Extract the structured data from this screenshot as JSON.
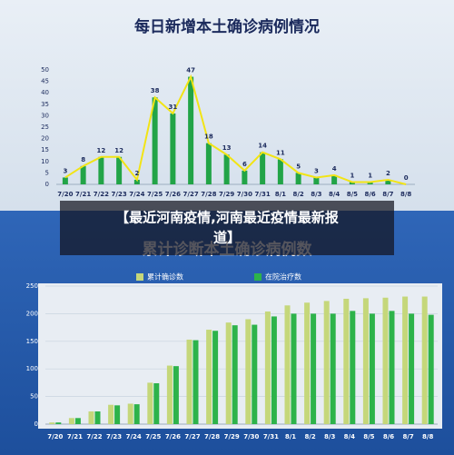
{
  "caption": "【最近河南疫情,河南最近疫情最新报道】",
  "chart_data": [
    {
      "type": "bar",
      "title": "每日新增本土确诊病例情况",
      "categories": [
        "7/20",
        "7/21",
        "7/22",
        "7/23",
        "7/24",
        "7/25",
        "7/26",
        "7/27",
        "7/28",
        "7/29",
        "7/30",
        "7/31",
        "8/1",
        "8/2",
        "8/3",
        "8/4",
        "8/5",
        "8/6",
        "8/7",
        "8/8"
      ],
      "values": [
        3,
        8,
        12,
        12,
        2,
        38,
        31,
        47,
        18,
        13,
        6,
        14,
        11,
        5,
        3,
        4,
        1,
        1,
        2,
        0
      ],
      "color": "#22a447",
      "overlay_line": true,
      "line_color": "#f2e415",
      "data_labels": true,
      "ylim": [
        0,
        50
      ],
      "yticks": [
        0,
        5,
        10,
        15,
        20,
        25,
        30,
        35,
        40,
        45,
        50
      ],
      "grid": false
    },
    {
      "type": "bar",
      "title": "累计诊断本土确诊病例数",
      "categories": [
        "7/20",
        "7/21",
        "7/22",
        "7/23",
        "7/24",
        "7/25",
        "7/26",
        "7/27",
        "7/28",
        "7/29",
        "7/30",
        "7/31",
        "8/1",
        "8/2",
        "8/3",
        "8/4",
        "8/5",
        "8/6",
        "8/7",
        "8/8"
      ],
      "series": [
        {
          "name": "累计确诊数",
          "color": "#c5d77a",
          "values": [
            3,
            11,
            23,
            35,
            37,
            75,
            106,
            153,
            171,
            184,
            190,
            204,
            215,
            220,
            223,
            227,
            228,
            229,
            231,
            231
          ]
        },
        {
          "name": "在院治疗数",
          "color": "#2db34a",
          "values": [
            3,
            11,
            23,
            34,
            36,
            74,
            105,
            152,
            169,
            179,
            180,
            195,
            200,
            200,
            200,
            205,
            200,
            205,
            200,
            198
          ]
        }
      ],
      "ylim": [
        0,
        250
      ],
      "yticks": [
        0,
        50,
        100,
        150,
        200,
        250
      ],
      "grid": true,
      "legend": "top"
    }
  ]
}
